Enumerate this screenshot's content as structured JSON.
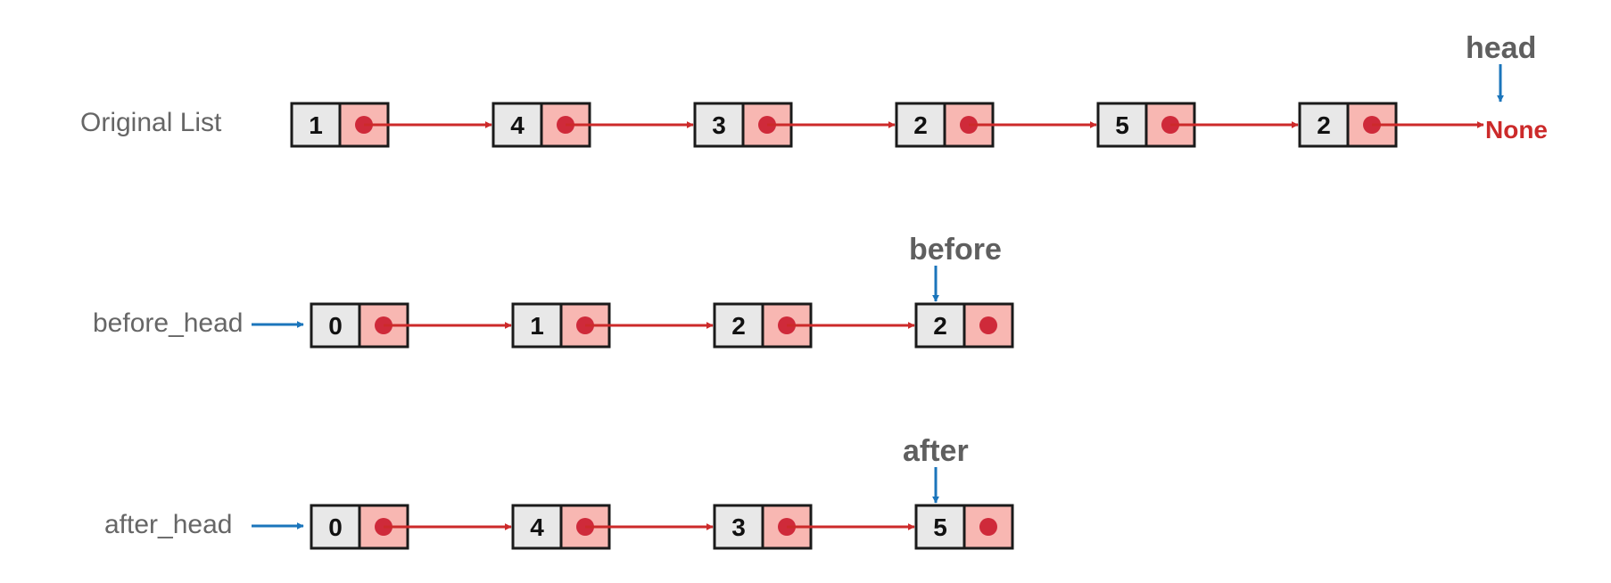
{
  "colors": {
    "node_border": "#1a1a1a",
    "value_cell": "#e8e8e8",
    "pointer_cell": "#f8b7b2",
    "pointer_dot": "#cf2a3a",
    "link_arrow": "#cc2a2a",
    "marker_arrow": "#1b75bb",
    "label_text": "#666666",
    "none_text": "#cc2a2a"
  },
  "rows": [
    {
      "id": "original",
      "label": "Original List",
      "values": [
        "1",
        "4",
        "3",
        "2",
        "5",
        "2"
      ],
      "has_entry_arrow": false,
      "terminal": "None",
      "pointer": {
        "label": "head",
        "target": "terminal"
      }
    },
    {
      "id": "before",
      "label": "before_head",
      "values": [
        "0",
        "1",
        "2",
        "2"
      ],
      "has_entry_arrow": true,
      "terminal": "",
      "pointer": {
        "label": "before",
        "target": 3
      }
    },
    {
      "id": "after",
      "label": "after_head",
      "values": [
        "0",
        "4",
        "3",
        "5"
      ],
      "has_entry_arrow": true,
      "terminal": "",
      "pointer": {
        "label": "after",
        "target": 3
      }
    }
  ]
}
